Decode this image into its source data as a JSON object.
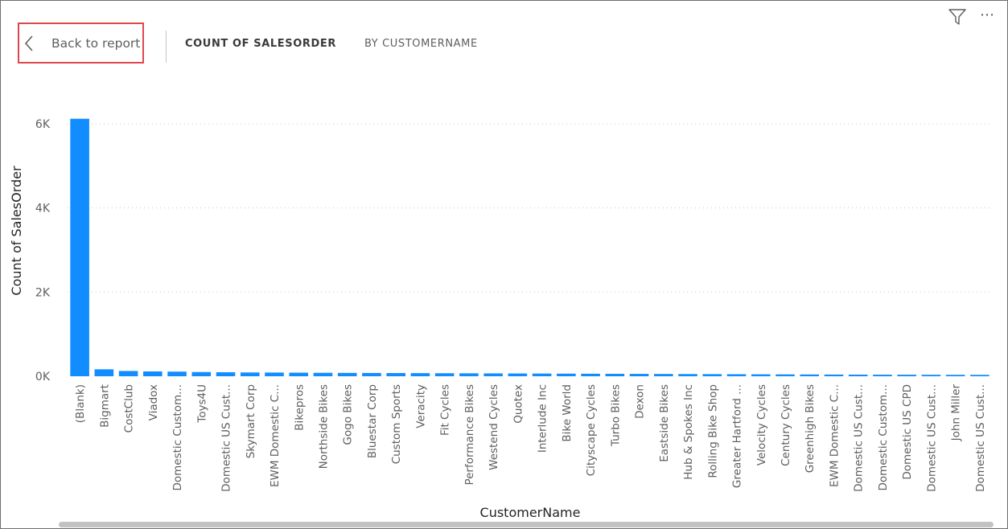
{
  "header": {
    "back_label": "Back to report",
    "title_main": "COUNT OF SALESORDER",
    "title_sub": "BY CUSTOMERNAME"
  },
  "icons": {
    "back": "chevron-left-icon",
    "filter": "filter-icon",
    "more": "more-options-icon"
  },
  "colors": {
    "bar": "#118DFF",
    "highlight": "#E0474C",
    "grid": "#C8C6C4"
  },
  "chart_data": {
    "type": "bar",
    "title": "Count of SalesOrder by CustomerName",
    "xlabel": "CustomerName",
    "ylabel": "Count of SalesOrder",
    "ylim": [
      0,
      6000
    ],
    "yticks": [
      0,
      2000,
      4000,
      6000
    ],
    "ytick_labels": [
      "0K",
      "2K",
      "4K",
      "6K"
    ],
    "grid": true,
    "categories": [
      "(Blank)",
      "Bigmart",
      "CostClub",
      "Viadox",
      "Domestic Custom...",
      "Toys4U",
      "Domestic US Cust...",
      "Skymart Corp",
      "EWM Domestic C...",
      "Bikepros",
      "Northside Bikes",
      "Gogo Bikes",
      "Bluestar Corp",
      "Custom Sports",
      "Veracity",
      "Fit Cycles",
      "Performance Bikes",
      "Westend Cycles",
      "Quotex",
      "Interlude Inc",
      "Bike World",
      "Cityscape Cycles",
      "Turbo Bikes",
      "Dexon",
      "Eastside Bikes",
      "Hub & Spokes Inc",
      "Rolling Bike Shop",
      "Greater Hartford ...",
      "Velocity Cycles",
      "Century Cycles",
      "Greenhigh Bikes",
      "EWM Domestic C...",
      "Domestic US Cust...",
      "Domestic Custom...",
      "Domestic US CPD",
      "Domestic US Cust...",
      "John Miller",
      "Domestic US Cust..."
    ],
    "values": [
      6120,
      165,
      125,
      115,
      110,
      100,
      95,
      90,
      88,
      85,
      82,
      80,
      78,
      76,
      74,
      72,
      70,
      68,
      66,
      64,
      62,
      60,
      58,
      56,
      54,
      52,
      50,
      48,
      46,
      44,
      42,
      40,
      38,
      37,
      36,
      35,
      34,
      33
    ]
  }
}
